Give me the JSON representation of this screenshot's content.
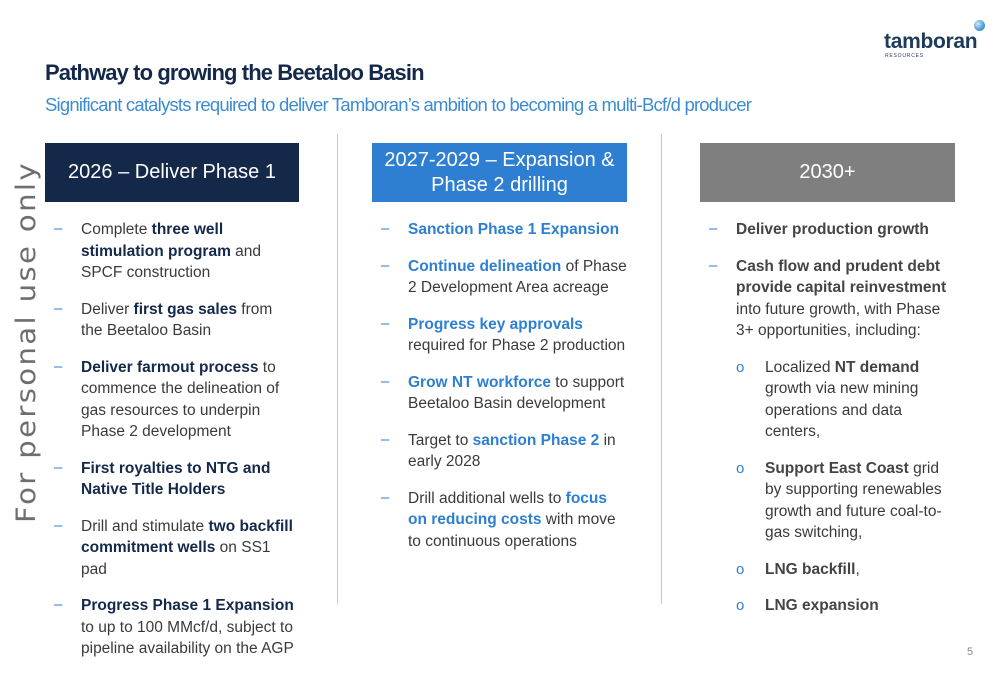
{
  "logo": {
    "word": "tamboran",
    "sub": "RESOURCES"
  },
  "title": "Pathway to growing the Beetaloo Basin",
  "subtitle": "Significant catalysts required to deliver Tamboran’s ambition to becoming a multi-Bcf/d producer",
  "watermark": "For personal use only",
  "colors": {
    "navy": "#14294a",
    "blue": "#2e7fd1",
    "grey": "#7f7f7f"
  },
  "columns": [
    {
      "header": [
        "2026 – Deliver Phase 1"
      ],
      "items": [
        [
          "Complete ",
          "three well stimulation program",
          " and SPCF construction"
        ],
        [
          "Deliver ",
          "first gas sales",
          " from the Beetaloo Basin"
        ],
        [
          "",
          "Deliver farmout process",
          " to commence the delineation of gas resources to underpin Phase 2 development"
        ],
        [
          "",
          "First royalties to NTG and Native Title Holders",
          ""
        ],
        [
          "Drill and stimulate ",
          "two backfill commitment wells",
          " on SS1 pad"
        ],
        [
          "",
          "Progress Phase 1 Expansion",
          " to up to 100 MMcf/d, subject to pipeline availability on the AGP"
        ]
      ]
    },
    {
      "header": [
        "2027-2029 – Expansion &",
        "Phase 2 drilling"
      ],
      "items": [
        [
          "",
          "Sanction Phase 1 Expansion",
          ""
        ],
        [
          "",
          "Continue delineation",
          " of Phase 2 Development Area acreage"
        ],
        [
          "",
          "Progress key approvals",
          " required for Phase 2 production"
        ],
        [
          "",
          "Grow NT workforce",
          " to support Beetaloo Basin development"
        ],
        [
          "Target to ",
          "sanction Phase 2",
          " in early 2028"
        ],
        [
          "Drill additional wells to ",
          "focus on reducing costs",
          " with move to continuous operations"
        ]
      ]
    },
    {
      "header": [
        "2030+"
      ],
      "items": [
        [
          "",
          "Deliver production growth",
          ""
        ],
        [
          "",
          "Cash flow and prudent debt provide capital reinvestment",
          " into future growth, with Phase 3+ opportunities, including:"
        ]
      ],
      "subitems": [
        [
          "Localized ",
          "NT demand",
          " growth via new mining operations and data centers,"
        ],
        [
          "",
          "Support East Coast",
          " grid by supporting renewables growth and future coal-to-gas switching,"
        ],
        [
          "",
          "LNG backfill",
          ","
        ],
        [
          "",
          "LNG expansion",
          ""
        ]
      ]
    }
  ],
  "bullet_dash": "–",
  "bullet_circle": "o",
  "page_number": "5"
}
